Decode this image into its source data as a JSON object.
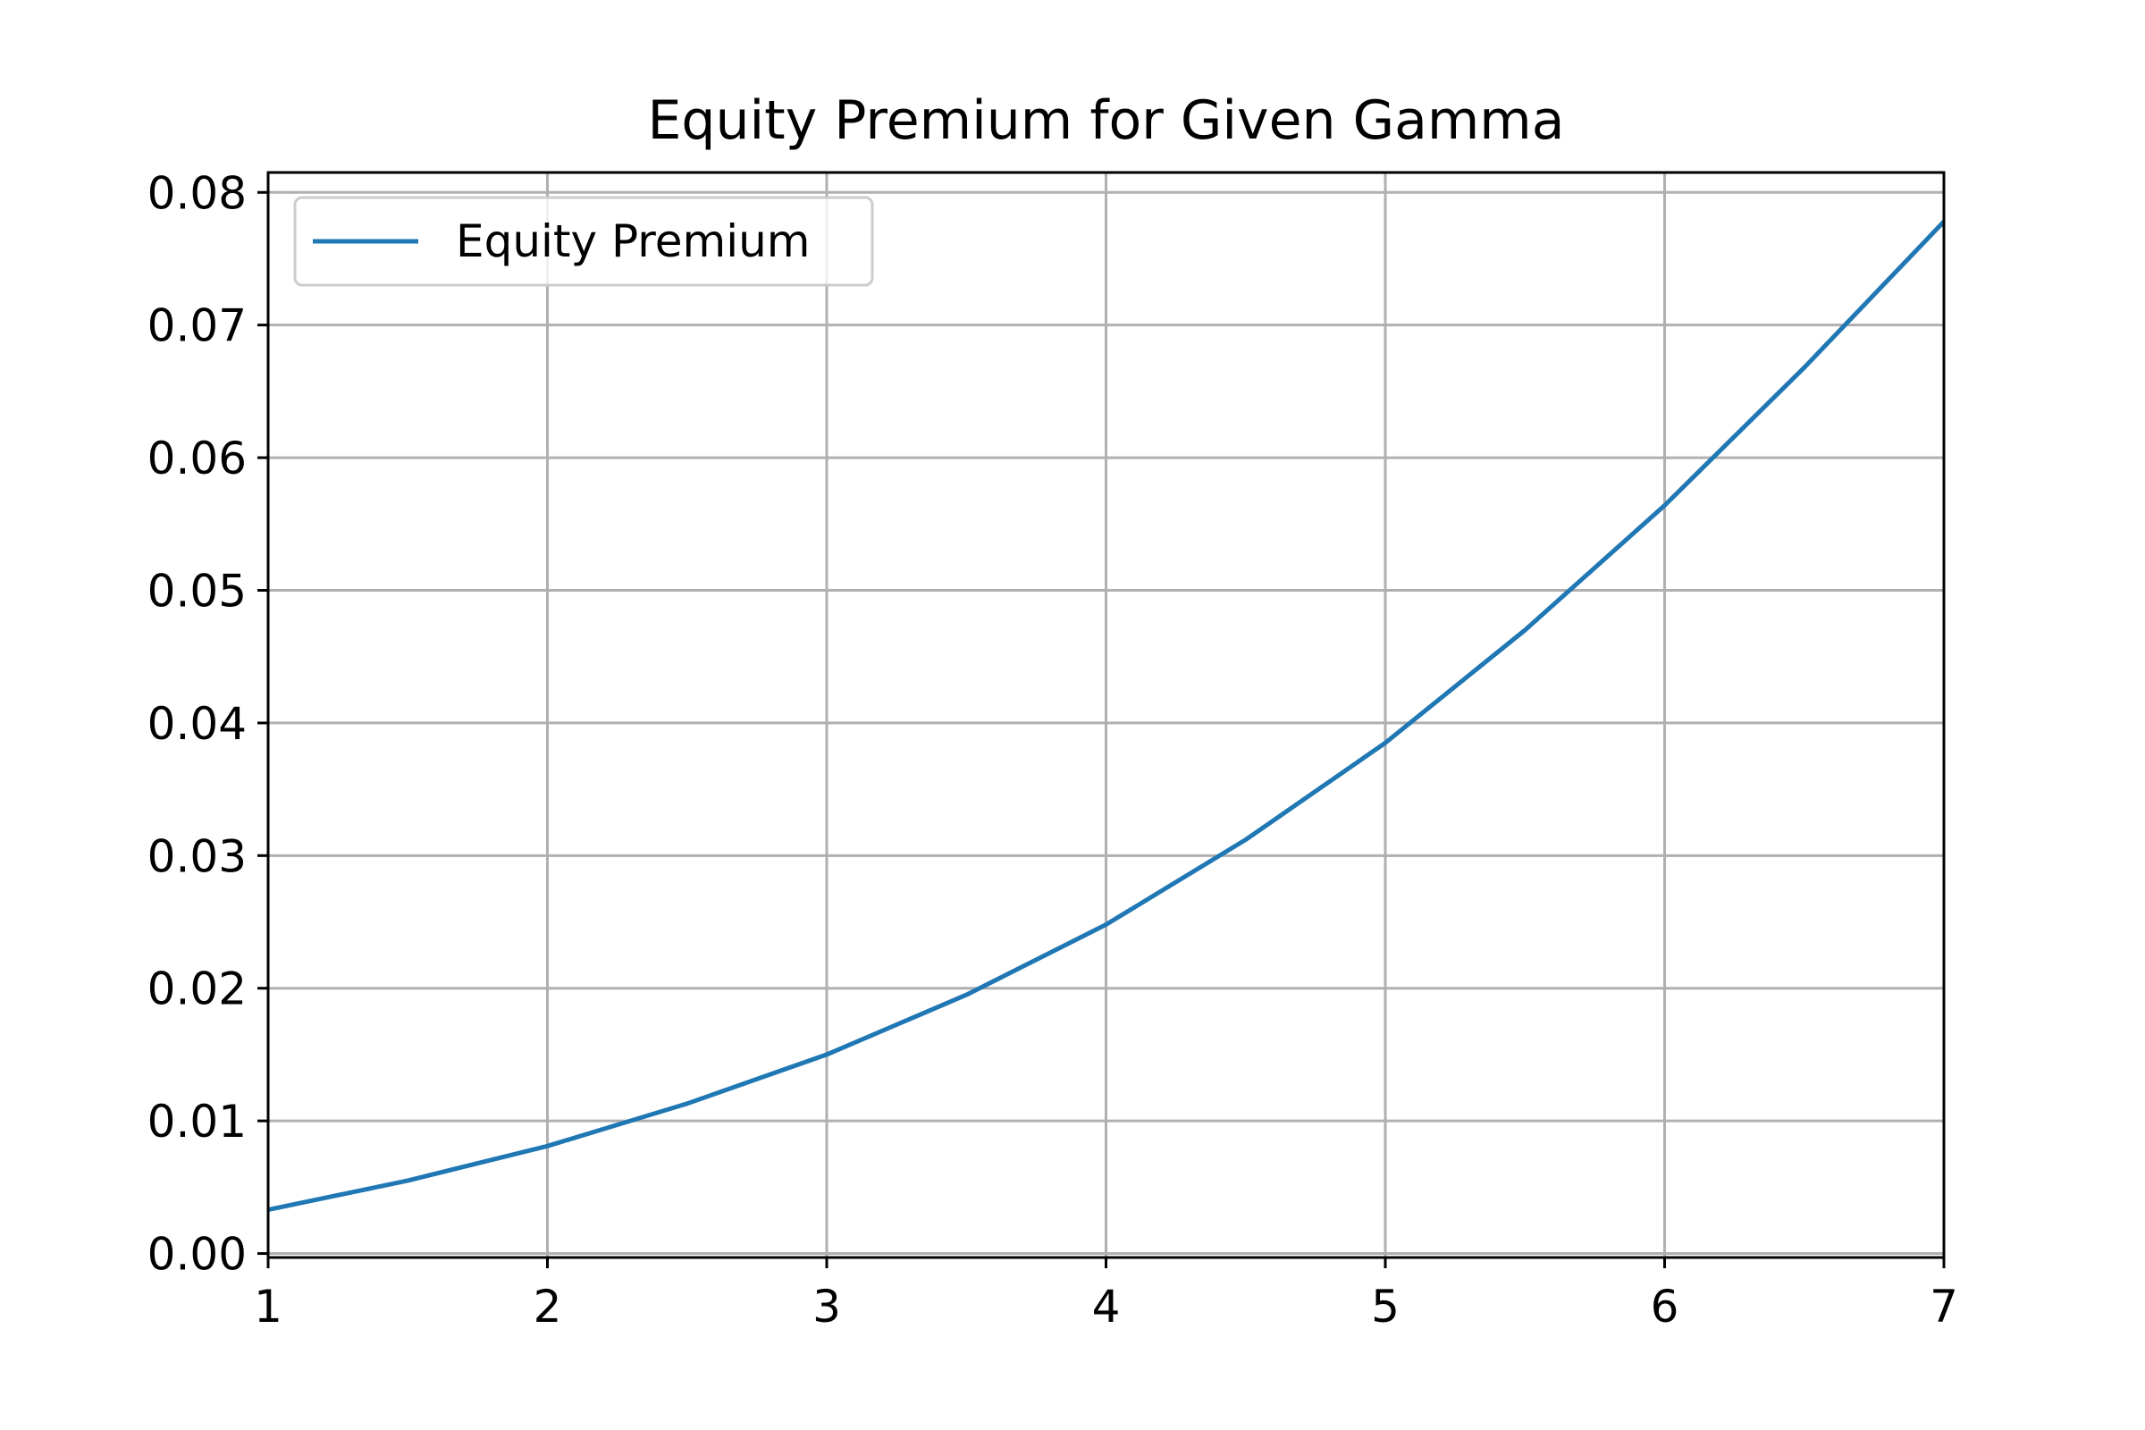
{
  "chart_data": {
    "type": "line",
    "title": "Equity Premium for Given Gamma",
    "xlabel": "",
    "ylabel": "",
    "xlim": [
      1,
      7
    ],
    "ylim": [
      -0.0003,
      0.0815
    ],
    "xticks": [
      1,
      2,
      3,
      4,
      5,
      6,
      7
    ],
    "xtick_labels": [
      "1",
      "2",
      "3",
      "4",
      "5",
      "6",
      "7"
    ],
    "yticks": [
      0.0,
      0.01,
      0.02,
      0.03,
      0.04,
      0.05,
      0.06,
      0.07,
      0.08
    ],
    "ytick_labels": [
      "0.00",
      "0.01",
      "0.02",
      "0.03",
      "0.04",
      "0.05",
      "0.06",
      "0.07",
      "0.08"
    ],
    "grid": true,
    "legend_position": "upper-left",
    "series": [
      {
        "name": "Equity Premium",
        "color": "#1f77b4",
        "x": [
          1.0,
          1.5,
          2.0,
          2.5,
          3.0,
          3.5,
          4.0,
          4.5,
          5.0,
          5.5,
          6.0,
          6.5,
          7.0
        ],
        "y": [
          0.0033,
          0.0055,
          0.0081,
          0.0113,
          0.015,
          0.0195,
          0.0248,
          0.0312,
          0.0385,
          0.047,
          0.0564,
          0.0668,
          0.0778
        ]
      }
    ]
  }
}
